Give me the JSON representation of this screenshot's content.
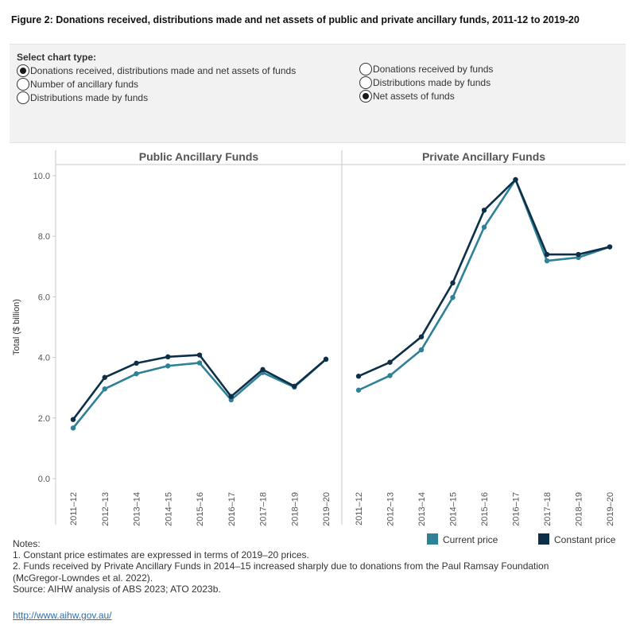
{
  "figure": {
    "title": "Figure 2: Donations received, distributions made and net assets of public and private ancillary funds, 2011-12 to 2019-20"
  },
  "controls": {
    "label": "Select chart type:",
    "options": [
      {
        "label": "Donations received, distributions made and net assets of funds",
        "selected": true
      },
      {
        "label": "Number of ancillary funds",
        "selected": false
      },
      {
        "label": "Distributions made by funds",
        "selected": false
      },
      {
        "label": "Donations received by funds",
        "selected": false
      },
      {
        "label": "Distributions made by funds",
        "selected": false
      },
      {
        "label": "Net assets of funds",
        "selected": true
      }
    ]
  },
  "chart_data": {
    "type": "line",
    "ylabel": "Total ($ billion)",
    "ylim": [
      0,
      10
    ],
    "yticks": [
      "0.0",
      "2.0",
      "4.0",
      "6.0",
      "8.0",
      "10.0"
    ],
    "grid": false,
    "legend_position": "bottom-right",
    "categories": [
      "2011–12",
      "2012–13",
      "2013–14",
      "2014–15",
      "2015–16",
      "2016–17",
      "2017–18",
      "2018–19",
      "2019–20"
    ],
    "panels": [
      {
        "title": "Public Ancillary Funds",
        "series": [
          {
            "name": "Current price",
            "color": "#2e8197",
            "values": [
              1.67,
              2.96,
              3.46,
              3.72,
              3.82,
              2.6,
              3.5,
              3.02,
              3.94
            ]
          },
          {
            "name": "Constant price",
            "color": "#0d3048",
            "values": [
              1.95,
              3.34,
              3.81,
              4.02,
              4.08,
              2.71,
              3.6,
              3.05,
              3.94
            ]
          }
        ]
      },
      {
        "title": "Private Ancillary Funds",
        "series": [
          {
            "name": "Current price",
            "color": "#2e8197",
            "values": [
              2.92,
              3.4,
              4.25,
              5.98,
              8.3,
              9.87,
              7.19,
              7.3,
              7.65
            ]
          },
          {
            "name": "Constant price",
            "color": "#0d3048",
            "values": [
              3.38,
              3.84,
              4.68,
              6.46,
              8.86,
              9.87,
              7.4,
              7.4,
              7.65
            ]
          }
        ]
      }
    ]
  },
  "legend": {
    "items": [
      {
        "label": "Current price",
        "color": "#2e8197"
      },
      {
        "label": "Constant price",
        "color": "#0d3048"
      }
    ]
  },
  "notes": {
    "heading": "Notes:",
    "lines": [
      "1. Constant price estimates are expressed in terms of 2019–20 prices.",
      "2. Funds received by Private Ancillary Funds in 2014–15 increased sharply due to donations from the Paul Ramsay Foundation",
      "(McGregor-Lowndes et al. 2022).",
      "Source: AIHW analysis of ABS 2023; ATO 2023b."
    ]
  },
  "link": {
    "text": "http://www.aihw.gov.au/"
  }
}
